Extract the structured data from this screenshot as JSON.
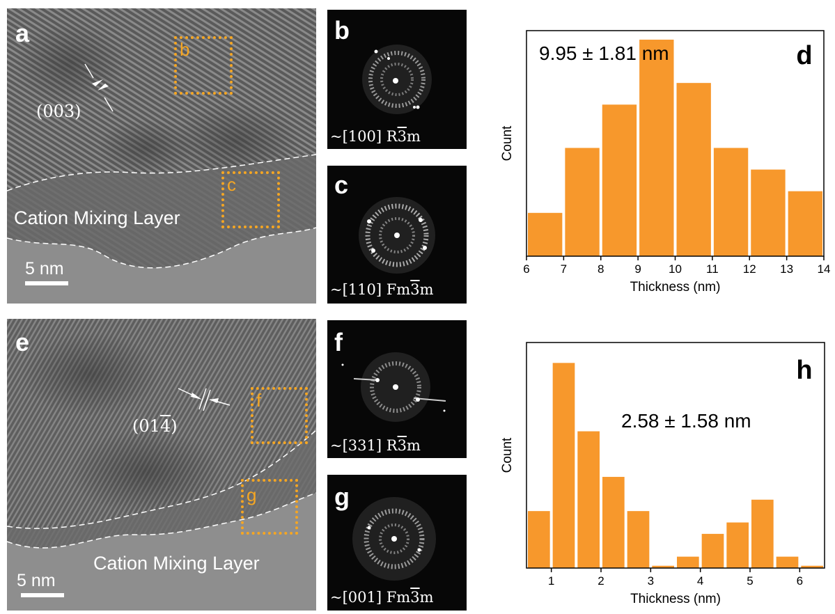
{
  "colors": {
    "bar": "#f7982c",
    "box": "#f5a623"
  },
  "panel_a": {
    "label": "a",
    "lattice_label": "(003)",
    "layer_label": "Cation Mixing Layer",
    "scale_label": "5 nm",
    "box_b": "b",
    "box_c": "c"
  },
  "panel_b": {
    "label": "b",
    "caption_prefix": "~[100] R",
    "caption_bar": "3",
    "caption_suffix": "m"
  },
  "panel_c": {
    "label": "c",
    "caption_prefix": "~[110] Fm",
    "caption_bar": "3",
    "caption_suffix": "m"
  },
  "panel_e": {
    "label": "e",
    "lattice_prefix": "(01",
    "lattice_bar": "4",
    "lattice_suffix": ")",
    "layer_label": "Cation Mixing Layer",
    "scale_label": "5 nm",
    "box_f": "f",
    "box_g": "g"
  },
  "panel_f": {
    "label": "f",
    "caption_prefix": "~[331] R",
    "caption_bar": "3",
    "caption_suffix": "m"
  },
  "panel_g": {
    "label": "g",
    "caption_prefix": "~[001] Fm",
    "caption_bar": "3",
    "caption_suffix": "m"
  },
  "chart_data": [
    {
      "panel": "d",
      "type": "bar",
      "annotation": "9.95 ± 1.81 nm",
      "xlabel": "Thickness (nm)",
      "ylabel": "Count",
      "xlim": [
        6,
        14
      ],
      "xticks": [
        "6",
        "7",
        "8",
        "9",
        "10",
        "11",
        "12",
        "13",
        "14"
      ],
      "bin_width": 1,
      "x": [
        6.5,
        7.5,
        8.5,
        9.5,
        10.5,
        11.5,
        12.5,
        13.5
      ],
      "values": [
        2,
        5,
        7,
        10,
        8,
        5,
        4,
        3
      ],
      "ylim": [
        0,
        10
      ]
    },
    {
      "panel": "h",
      "type": "bar",
      "annotation": "2.58 ± 1.58 nm",
      "xlabel": "Thickness (nm)",
      "ylabel": "Count",
      "xlim": [
        0.5,
        6.5
      ],
      "xticks": [
        "1",
        "2",
        "3",
        "4",
        "5",
        "6"
      ],
      "bin_width": 0.5,
      "x": [
        0.75,
        1.25,
        1.75,
        2.25,
        2.75,
        3.25,
        3.75,
        4.25,
        4.75,
        5.25,
        5.75,
        6.25
      ],
      "values": [
        5,
        18,
        12,
        8,
        5,
        0.2,
        1,
        3,
        4,
        6,
        1,
        0.2
      ],
      "ylim": [
        0,
        19
      ]
    }
  ]
}
